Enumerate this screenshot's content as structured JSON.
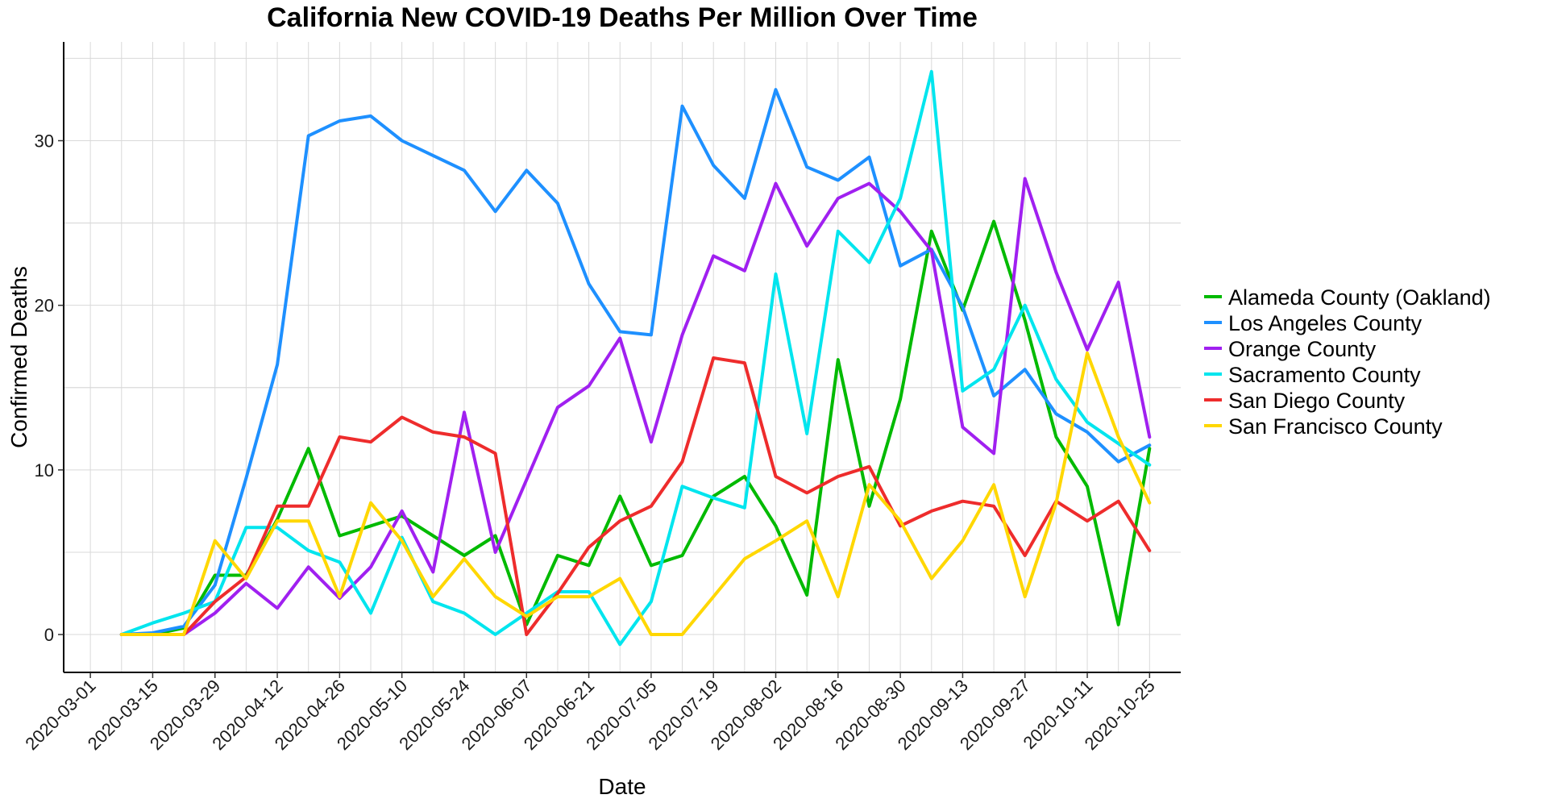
{
  "chart_data": {
    "type": "line",
    "title": "California New COVID-19 Deaths Per Million Over Time",
    "xlabel": "Date",
    "ylabel": "Confirmed Deaths",
    "xlim": [
      "2020-02-24",
      "2020-11-01"
    ],
    "ylim": [
      -2.3,
      36
    ],
    "x_ticks": [
      "2020-03-01",
      "2020-03-15",
      "2020-03-29",
      "2020-04-12",
      "2020-04-26",
      "2020-05-10",
      "2020-05-24",
      "2020-06-07",
      "2020-06-21",
      "2020-07-05",
      "2020-07-19",
      "2020-08-02",
      "2020-08-16",
      "2020-08-30",
      "2020-09-13",
      "2020-09-27",
      "2020-10-11",
      "2020-10-25"
    ],
    "y_ticks": [
      0,
      10,
      20,
      30
    ],
    "grid": true,
    "legend_position": "right",
    "x": [
      "2020-03-08",
      "2020-03-15",
      "2020-03-22",
      "2020-03-29",
      "2020-04-05",
      "2020-04-12",
      "2020-04-19",
      "2020-04-26",
      "2020-05-03",
      "2020-05-10",
      "2020-05-17",
      "2020-05-24",
      "2020-05-31",
      "2020-06-07",
      "2020-06-14",
      "2020-06-21",
      "2020-06-28",
      "2020-07-05",
      "2020-07-12",
      "2020-07-19",
      "2020-07-26",
      "2020-08-02",
      "2020-08-09",
      "2020-08-16",
      "2020-08-23",
      "2020-08-30",
      "2020-09-06",
      "2020-09-13",
      "2020-09-20",
      "2020-09-27",
      "2020-10-04",
      "2020-10-11",
      "2020-10-18",
      "2020-10-25"
    ],
    "series": [
      {
        "name": "Alameda County (Oakland)",
        "color": "#00BA00",
        "values": [
          0,
          0,
          0.4,
          3.6,
          3.6,
          7.0,
          11.3,
          6.0,
          6.6,
          7.2,
          6.0,
          4.8,
          6.0,
          0.6,
          4.8,
          4.2,
          8.4,
          4.2,
          4.8,
          8.4,
          9.6,
          6.6,
          2.4,
          16.7,
          7.8,
          14.3,
          24.5,
          19.7,
          25.1,
          19.1,
          12.0,
          9.0,
          0.6,
          11.3
        ]
      },
      {
        "name": "Los Angeles County",
        "color": "#1E90FF",
        "values": [
          0,
          0.1,
          0.5,
          3.0,
          9.5,
          16.4,
          30.3,
          31.2,
          31.5,
          30.0,
          29.1,
          28.2,
          25.7,
          28.2,
          26.2,
          21.3,
          18.4,
          18.2,
          32.1,
          28.5,
          26.5,
          33.1,
          28.4,
          27.6,
          29.0,
          22.4,
          23.4,
          19.9,
          14.5,
          16.1,
          13.4,
          12.3,
          10.5,
          11.5
        ]
      },
      {
        "name": "Orange County",
        "color": "#A020F0",
        "values": [
          0,
          0,
          0,
          1.3,
          3.1,
          1.6,
          4.1,
          2.2,
          4.1,
          7.5,
          3.8,
          13.5,
          5.0,
          9.4,
          13.8,
          15.1,
          18.0,
          11.7,
          18.2,
          23.0,
          22.1,
          27.4,
          23.6,
          26.5,
          27.4,
          25.7,
          23.3,
          12.6,
          11.0,
          27.7,
          22.0,
          17.3,
          21.4,
          12.0
        ]
      },
      {
        "name": "Sacramento County",
        "color": "#00E5EE",
        "values": [
          0,
          0.7,
          1.3,
          2.0,
          6.5,
          6.5,
          5.1,
          4.4,
          1.3,
          5.9,
          2.0,
          1.3,
          0,
          1.3,
          2.6,
          2.6,
          -0.6,
          2.0,
          9.0,
          8.3,
          7.7,
          21.9,
          12.2,
          24.5,
          22.6,
          26.5,
          34.2,
          14.8,
          16.1,
          20.0,
          15.5,
          12.9,
          11.6,
          10.3
        ]
      },
      {
        "name": "San Diego County",
        "color": "#EE2C2C",
        "values": [
          0,
          0,
          0,
          2.0,
          3.5,
          7.8,
          7.8,
          12.0,
          11.7,
          13.2,
          12.3,
          12.0,
          11.0,
          0,
          2.5,
          5.3,
          6.9,
          7.8,
          10.5,
          16.8,
          16.5,
          9.6,
          8.6,
          9.6,
          10.2,
          6.6,
          7.5,
          8.1,
          7.8,
          4.8,
          8.1,
          6.9,
          8.1,
          5.1
        ]
      },
      {
        "name": "San Francisco County",
        "color": "#FFD700",
        "values": [
          0,
          0,
          0,
          5.7,
          3.4,
          6.9,
          6.9,
          2.3,
          8.0,
          5.7,
          2.3,
          4.6,
          2.3,
          1.1,
          2.3,
          2.3,
          3.4,
          0,
          0,
          2.3,
          4.6,
          5.7,
          6.9,
          2.3,
          9.1,
          6.9,
          3.4,
          5.7,
          9.1,
          2.3,
          8.0,
          17.1,
          12.0,
          8.0
        ]
      }
    ]
  }
}
